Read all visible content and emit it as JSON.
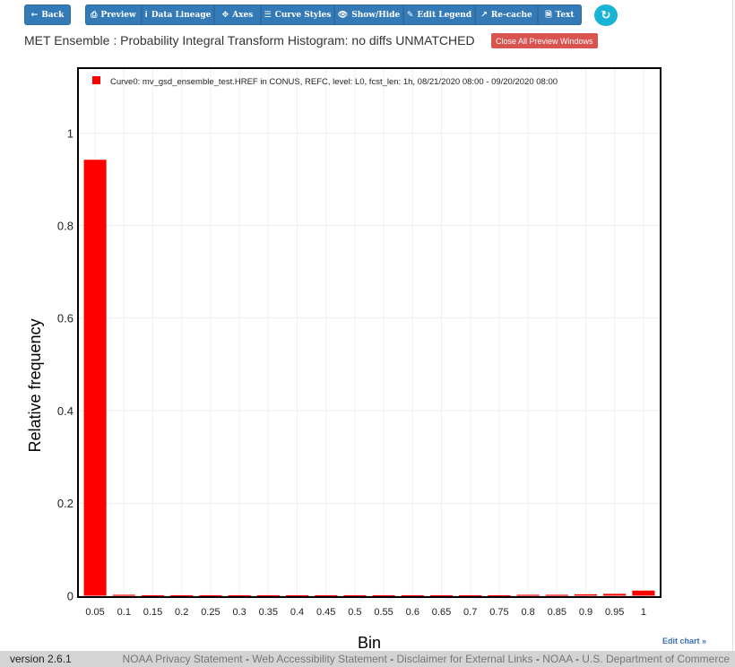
{
  "toolbar": {
    "back_label": "Back",
    "preview_label": "Preview",
    "data_lineage_label": "Data Lineage",
    "axes_label": "Axes",
    "curve_styles_label": "Curve Styles",
    "show_hide_label": "Show/Hide",
    "edit_legend_label": "Edit Legend",
    "recache_label": "Re-cache",
    "text_label": "Text"
  },
  "header": {
    "title": "MET Ensemble : Probability Integral Transform Histogram: no diffs UNMATCHED",
    "close_windows_label": "Close All Preview Windows"
  },
  "chart_data": {
    "type": "bar",
    "legend_placement": "top-left",
    "series": [
      {
        "name": "Curve0: mv_gsd_ensemble_test.HREF in CONUS, REFC, level: L0, fcst_len: 1h, 08/21/2020 08:00 - 09/20/2020 08:00",
        "color": "#ff0000",
        "x": [
          0.05,
          0.1,
          0.15,
          0.2,
          0.25,
          0.3,
          0.35,
          0.4,
          0.45,
          0.5,
          0.55,
          0.6,
          0.65,
          0.7,
          0.75,
          0.8,
          0.85,
          0.9,
          0.95,
          1
        ],
        "values": [
          0.942,
          0.002,
          0.001,
          0.001,
          0.001,
          0.001,
          0.001,
          0.001,
          0.001,
          0.001,
          0.001,
          0.001,
          0.001,
          0.001,
          0.001,
          0.002,
          0.002,
          0.003,
          0.004,
          0.011
        ]
      }
    ],
    "categories": [
      "0.05",
      "0.1",
      "0.15",
      "0.2",
      "0.25",
      "0.3",
      "0.35",
      "0.4",
      "0.45",
      "0.5",
      "0.55",
      "0.6",
      "0.65",
      "0.7",
      "0.75",
      "0.8",
      "0.85",
      "0.9",
      "0.95",
      "1"
    ],
    "xlabel": "Bin",
    "ylabel": "Relative frequency",
    "ylim": [
      -0.003,
      1.14
    ],
    "yticks": [
      0,
      0.2,
      0.4,
      0.6,
      0.8,
      1
    ],
    "ytick_labels": [
      "0",
      "0.2",
      "0.4",
      "0.6",
      "0.8",
      "1"
    ],
    "grid": true
  },
  "edit_chart_label": "Edit chart »",
  "footer": {
    "version": "version 2.6.1",
    "links": [
      "NOAA Privacy Statement",
      "Web Accessibility Statement",
      "Disclaimer for External Links",
      "NOAA",
      "U.S. Department of Commerce"
    ]
  },
  "colors": {
    "button": "#337ab7",
    "refresh": "#17b4d6",
    "close_button": "#d9534f",
    "bar": "#ff0000"
  },
  "icons": {
    "back": "arrow-left-icon",
    "preview": "printer-icon",
    "data_lineage": "info-icon",
    "axes": "move-arrows-icon",
    "curve_styles": "list-icon",
    "show_hide": "eye-icon",
    "edit_legend": "pencil-icon",
    "recache": "line-chart-icon",
    "text": "file-icon",
    "refresh": "refresh-icon"
  }
}
